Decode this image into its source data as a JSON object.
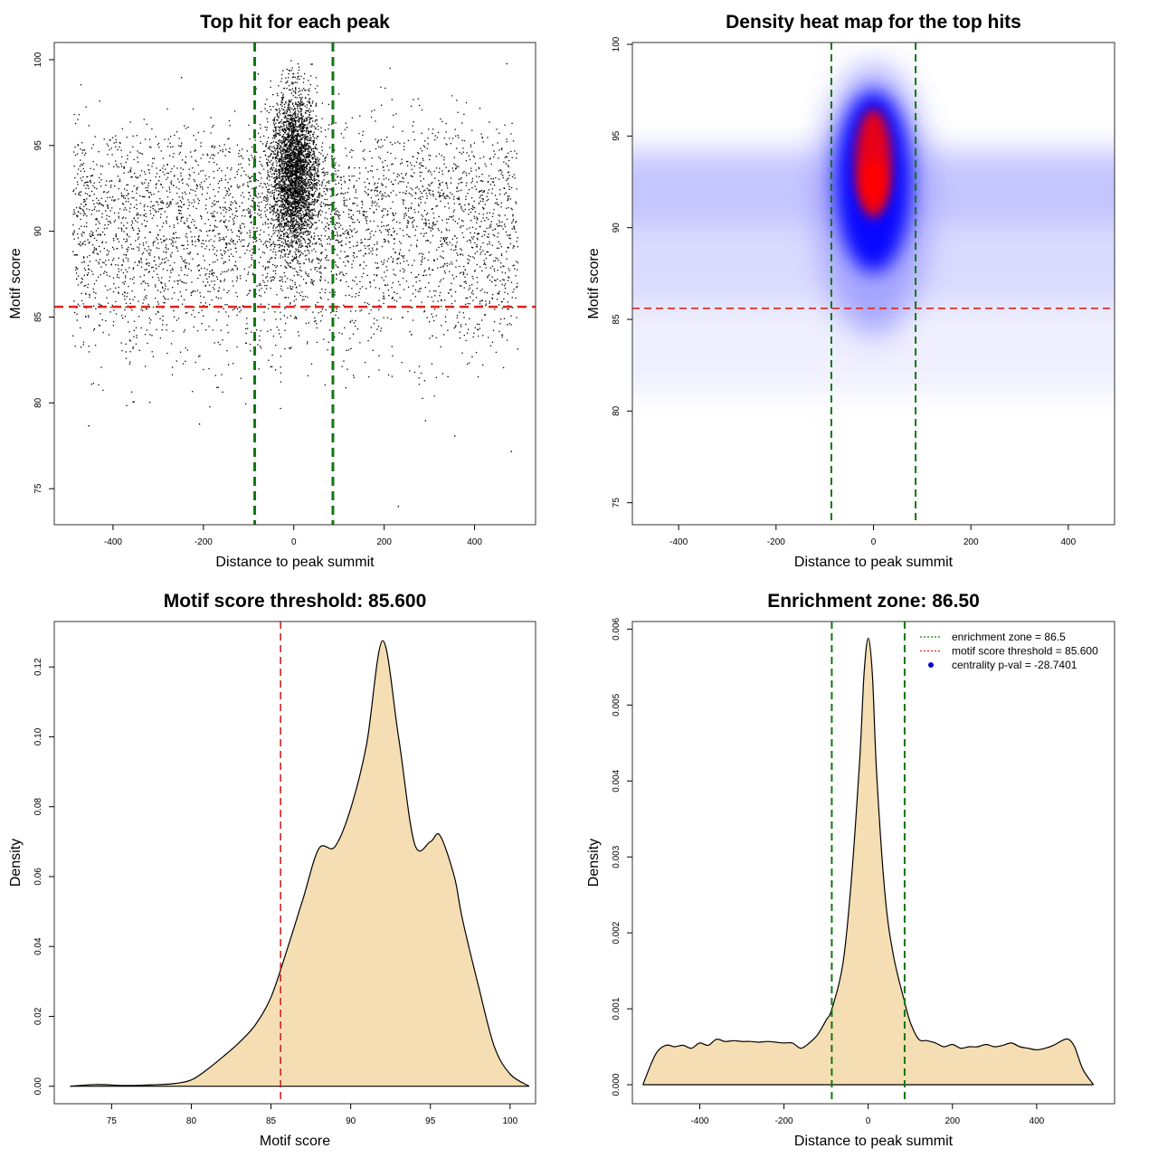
{
  "chart_data": [
    {
      "type": "scatter",
      "title": "Top hit for each peak",
      "xlabel": "Distance to peak summit",
      "ylabel": "Motif score",
      "xlim": [
        -530,
        535
      ],
      "ylim": [
        72.9,
        101.0
      ],
      "xticks": [
        -400,
        -200,
        0,
        200,
        400
      ],
      "yticks": [
        75,
        80,
        85,
        90,
        95,
        100
      ],
      "hline": {
        "value": 85.6,
        "color": "#dd2222"
      },
      "vlines": [
        {
          "value": -86.5,
          "color": "#117711"
        },
        {
          "value": 86.5,
          "color": "#117711"
        }
      ],
      "points": {
        "background": {
          "x_range": [
            -490,
            495
          ],
          "score_modes": [
            92,
            88
          ],
          "count": 4200
        },
        "central": {
          "x_center": 0,
          "x_spread": 25,
          "score_center": 93.5,
          "score_spread": 2.3,
          "count": 3300
        }
      },
      "grid": false
    },
    {
      "type": "heatmap",
      "title": "Density heat map for the top hits",
      "xlabel": "Distance to peak summit",
      "ylabel": "Motif score",
      "xlim": [
        -495,
        495
      ],
      "ylim": [
        73.8,
        100.1
      ],
      "xticks": [
        -400,
        -200,
        0,
        200,
        400
      ],
      "yticks": [
        75,
        80,
        85,
        90,
        95,
        100
      ],
      "hline": {
        "value": 85.6,
        "color": "#dd2222"
      },
      "vlines": [
        {
          "value": -86.5,
          "color": "#117711"
        },
        {
          "value": 86.5,
          "color": "#117711"
        }
      ],
      "colors": [
        "#ffffff",
        "#0000ff",
        "#ff0000"
      ],
      "hotspot": {
        "x": 0,
        "score": 92.5
      },
      "grid": false
    },
    {
      "type": "area",
      "title": "Motif score threshold: 85.600",
      "xlabel": "Motif score",
      "ylabel": "Density",
      "xlim": [
        71.4,
        101.6
      ],
      "ylim": [
        -0.005,
        0.133
      ],
      "xticks": [
        75,
        80,
        85,
        90,
        95,
        100
      ],
      "yticks": [
        0.0,
        0.02,
        0.04,
        0.06,
        0.08,
        0.1,
        0.12
      ],
      "ytick_labels": [
        "0.00",
        "0.02",
        "0.04",
        "0.06",
        "0.08",
        "0.10",
        "0.12"
      ],
      "vline": {
        "value": 85.6,
        "color": "#cc2222"
      },
      "fill": "#f5deb3",
      "x": [
        72.4,
        74,
        76,
        78,
        79,
        80,
        81,
        82,
        83,
        84,
        85,
        86,
        87,
        88,
        89,
        90,
        91,
        92,
        93,
        94,
        95,
        95.6,
        96.5,
        97,
        98,
        99,
        100,
        101.2
      ],
      "y": [
        0.0,
        0.0005,
        0.0002,
        0.0005,
        0.0008,
        0.0018,
        0.0048,
        0.0085,
        0.0125,
        0.0175,
        0.0255,
        0.039,
        0.0535,
        0.068,
        0.0685,
        0.0795,
        0.098,
        0.1275,
        0.1,
        0.0695,
        0.07,
        0.0718,
        0.06,
        0.048,
        0.029,
        0.0115,
        0.0035,
        0.0
      ],
      "grid": false
    },
    {
      "type": "area",
      "title": "Enrichment zone: 86.50",
      "xlabel": "Distance to peak summit",
      "ylabel": "Density",
      "xlim": [
        -560,
        585
      ],
      "ylim": [
        -0.00025,
        0.0061
      ],
      "xticks": [
        -400,
        -200,
        0,
        200,
        400
      ],
      "yticks": [
        0.0,
        0.001,
        0.002,
        0.003,
        0.004,
        0.005,
        0.006
      ],
      "ytick_labels": [
        "0.000",
        "0.001",
        "0.002",
        "0.003",
        "0.004",
        "0.005",
        "0.006"
      ],
      "vlines": [
        {
          "value": -86.5,
          "color": "#117711"
        },
        {
          "value": 86.5,
          "color": "#117711"
        }
      ],
      "fill": "#f5deb3",
      "x": [
        -535,
        -505,
        -480,
        -460,
        -440,
        -420,
        -400,
        -380,
        -360,
        -340,
        -320,
        -300,
        -280,
        -260,
        -240,
        -220,
        -200,
        -180,
        -160,
        -140,
        -120,
        -100,
        -86,
        -60,
        -40,
        -20,
        -10,
        0,
        10,
        20,
        40,
        60,
        86,
        100,
        120,
        140,
        160,
        180,
        200,
        220,
        240,
        260,
        280,
        300,
        320,
        340,
        360,
        380,
        400,
        420,
        440,
        460,
        475,
        490,
        510,
        535
      ],
      "y": [
        0.0,
        0.0004,
        0.00052,
        0.0005,
        0.00052,
        0.00048,
        0.00055,
        0.00052,
        0.0006,
        0.00057,
        0.00058,
        0.00057,
        0.00057,
        0.00056,
        0.00057,
        0.00056,
        0.00055,
        0.00055,
        0.00048,
        0.00055,
        0.00066,
        0.00085,
        0.001,
        0.0016,
        0.0027,
        0.0043,
        0.0054,
        0.00588,
        0.0054,
        0.0041,
        0.0025,
        0.0017,
        0.0011,
        0.00082,
        0.0006,
        0.00058,
        0.00055,
        0.0005,
        0.00053,
        0.00048,
        0.0005,
        0.0005,
        0.00053,
        0.0005,
        0.00052,
        0.00055,
        0.0005,
        0.00048,
        0.00046,
        0.00048,
        0.00052,
        0.00058,
        0.0006,
        0.0005,
        0.0002,
        0.0
      ],
      "legend": {
        "position": "top-right",
        "entries": [
          {
            "label": "enrichment zone = 86.5",
            "color": "#117711",
            "style": "dotted-line"
          },
          {
            "label": "motif score threshold = 85.600",
            "color": "#dd2222",
            "style": "dotted-line"
          },
          {
            "label": "centrality p-val = -28.7401",
            "color": "#0000cc",
            "style": "point"
          }
        ]
      },
      "grid": false
    }
  ]
}
